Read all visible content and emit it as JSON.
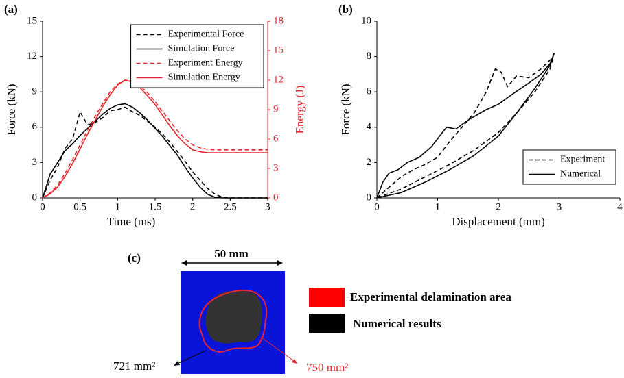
{
  "chart_data": [
    {
      "type": "line",
      "label": "(a)",
      "xlabel": "Time (ms)",
      "ylabel": "Force (kN)",
      "y2label": "Energy (J)",
      "y2_color": "#e8262b",
      "x": [
        0,
        0.1,
        0.2,
        0.3,
        0.4,
        0.5,
        0.6,
        0.7,
        0.8,
        0.9,
        1.0,
        1.1,
        1.2,
        1.3,
        1.4,
        1.5,
        1.6,
        1.7,
        1.8,
        1.9,
        2.0,
        2.1,
        2.2,
        2.3,
        2.4,
        2.5,
        2.6,
        2.7,
        2.8,
        2.9,
        3.0
      ],
      "xlim": [
        0,
        3
      ],
      "xticks": [
        0,
        0.5,
        1,
        1.5,
        2,
        2.5,
        3
      ],
      "ylim": [
        0,
        15
      ],
      "yticks": [
        0,
        3,
        6,
        9,
        12,
        15
      ],
      "y2lim": [
        0,
        18
      ],
      "y2ticks": [
        0,
        3,
        6,
        9,
        12,
        15,
        18
      ],
      "legend": "upper right",
      "series": [
        {
          "name": "Experimental Force",
          "color": "#000000",
          "style": "dashed",
          "values": [
            0,
            1.5,
            2.6,
            4.2,
            5.0,
            7.3,
            6.2,
            6.4,
            6.8,
            7.4,
            7.5,
            7.7,
            7.3,
            7.0,
            6.5,
            6.0,
            5.4,
            4.7,
            3.9,
            3.1,
            2.2,
            1.5,
            0.8,
            0.3,
            0.05,
            0,
            0,
            0,
            0,
            0,
            0
          ]
        },
        {
          "name": "Simulation Force",
          "color": "#000000",
          "style": "solid",
          "values": [
            0,
            2.0,
            3.0,
            4.0,
            4.6,
            5.3,
            5.9,
            6.5,
            7.1,
            7.6,
            7.9,
            8.0,
            7.7,
            7.2,
            6.6,
            5.9,
            5.2,
            4.4,
            3.6,
            2.6,
            1.7,
            0.9,
            0.3,
            0.05,
            0,
            0,
            0,
            0,
            0,
            0,
            0
          ]
        },
        {
          "name": "Experiment Energy",
          "color": "#e8262b",
          "style": "dashed",
          "axis": "y2",
          "values": [
            0,
            0.5,
            1.3,
            2.5,
            3.9,
            5.4,
            6.9,
            8.3,
            9.6,
            10.8,
            11.6,
            12.0,
            11.9,
            11.4,
            10.7,
            9.8,
            8.8,
            7.8,
            6.8,
            6.0,
            5.4,
            5.1,
            4.95,
            4.9,
            4.9,
            4.9,
            4.9,
            4.9,
            4.9,
            4.9,
            4.9
          ]
        },
        {
          "name": "Simulation Energy",
          "color": "#e8262b",
          "style": "solid",
          "axis": "y2",
          "values": [
            0,
            0.4,
            1.1,
            2.2,
            3.5,
            5.0,
            6.5,
            7.9,
            9.3,
            10.5,
            11.5,
            12.0,
            11.8,
            11.2,
            10.4,
            9.5,
            8.4,
            7.3,
            6.3,
            5.5,
            4.9,
            4.7,
            4.6,
            4.6,
            4.6,
            4.6,
            4.6,
            4.6,
            4.6,
            4.6,
            4.6
          ]
        }
      ]
    },
    {
      "type": "line",
      "label": "(b)",
      "xlabel": "Displacement (mm)",
      "ylabel": "Force (kN)",
      "xlim": [
        0,
        4
      ],
      "xticks": [
        0,
        1,
        2,
        3,
        4
      ],
      "ylim": [
        0,
        10
      ],
      "yticks": [
        0,
        2,
        4,
        6,
        8,
        10
      ],
      "legend": "lower right",
      "series": [
        {
          "name": "Experiment",
          "color": "#000000",
          "style": "dashed",
          "x": [
            0,
            0.2,
            0.4,
            0.6,
            0.8,
            1.0,
            1.2,
            1.4,
            1.6,
            1.8,
            1.95,
            2.05,
            2.15,
            2.3,
            2.5,
            2.7,
            2.85,
            2.9,
            2.85,
            2.6,
            2.3,
            2.0,
            1.6,
            1.2,
            0.8,
            0.4,
            0
          ],
          "values": [
            0,
            0.6,
            1.2,
            1.6,
            1.9,
            2.3,
            3.2,
            4.0,
            4.8,
            6.0,
            7.3,
            7.1,
            6.3,
            6.9,
            6.8,
            7.3,
            7.8,
            7.9,
            7.3,
            6.0,
            4.8,
            3.7,
            2.7,
            1.9,
            1.2,
            0.5,
            0
          ]
        },
        {
          "name": "Numerical",
          "color": "#000000",
          "style": "solid",
          "x": [
            0,
            0.1,
            0.2,
            0.35,
            0.5,
            0.7,
            0.9,
            1.1,
            1.15,
            1.3,
            1.5,
            1.8,
            2.0,
            2.2,
            2.5,
            2.7,
            2.85,
            2.92,
            2.85,
            2.6,
            2.3,
            2.0,
            1.6,
            1.2,
            0.8,
            0.4,
            0
          ],
          "values": [
            0,
            0.9,
            1.4,
            1.6,
            2.0,
            2.3,
            2.9,
            3.8,
            4.0,
            3.9,
            4.4,
            5.0,
            5.3,
            5.8,
            6.5,
            7.0,
            7.6,
            8.2,
            7.5,
            6.2,
            4.8,
            3.5,
            2.4,
            1.6,
            0.9,
            0.3,
            0
          ]
        }
      ]
    }
  ],
  "panel_c": {
    "label": "(c)",
    "width_label": "50 mm",
    "legend": [
      "Experimental delamination area",
      "Numerical results"
    ],
    "numerical_area": "721 mm²",
    "experimental_area": "750 mm²"
  }
}
